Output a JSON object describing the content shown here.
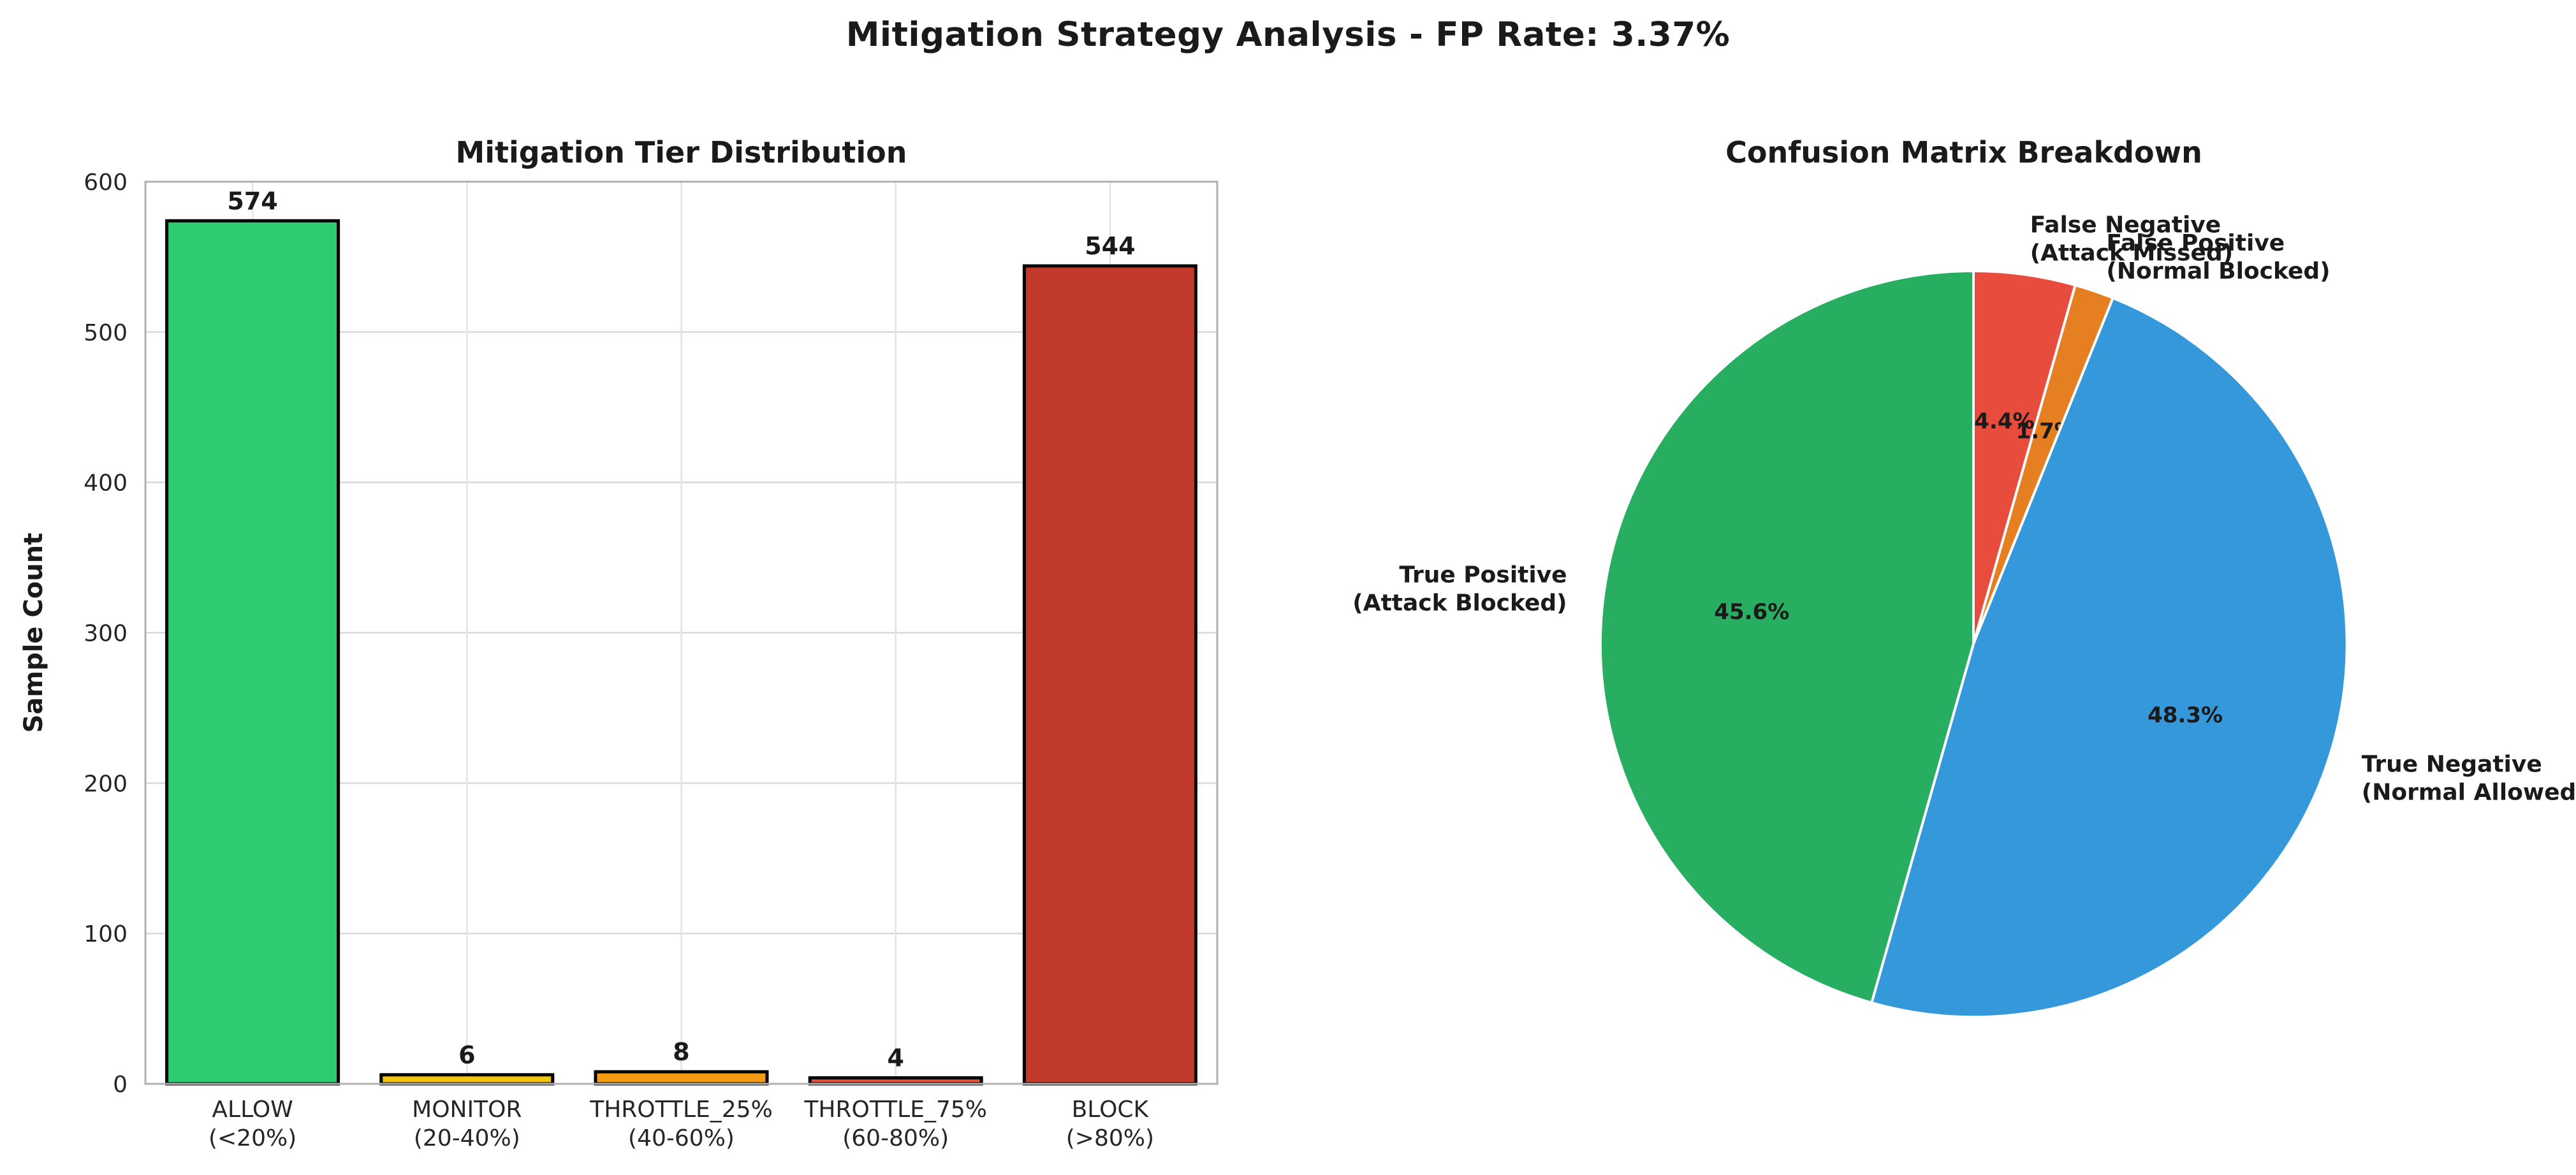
{
  "figure": {
    "suptitle": "Mitigation Strategy Analysis - FP Rate: 3.37%",
    "background": "#ffffff"
  },
  "chart_data": [
    {
      "type": "bar",
      "title": "Mitigation Tier Distribution",
      "xlabel": "",
      "ylabel": "Sample Count",
      "ylim": [
        0,
        600
      ],
      "yticks": [
        0,
        100,
        200,
        300,
        400,
        500,
        600
      ],
      "grid": true,
      "legend_position": "none",
      "categories": [
        "ALLOW\n(<20%)",
        "MONITOR\n(20-40%)",
        "THROTTLE_25%\n(40-60%)",
        "THROTTLE_75%\n(60-80%)",
        "BLOCK\n(>80%)"
      ],
      "values": [
        574,
        6,
        8,
        4,
        544
      ],
      "bar_colors": [
        "#2ecc71",
        "#f1c40f",
        "#f39c12",
        "#e74c3c",
        "#c0392b"
      ],
      "bar_edge_color": "#000000",
      "grid_color": "#d9d9d9",
      "axes_border_color": "#b0b0b0",
      "text_color": "#1a1a1a"
    },
    {
      "type": "pie",
      "title": "Confusion Matrix Breakdown",
      "start_angle": 90,
      "direction": "clockwise",
      "legend_position": "none",
      "slices": [
        {
          "label": "False Negative\n(Attack Missed)",
          "pct": 4.4,
          "pct_label": "4.4%",
          "color": "#e74c3c"
        },
        {
          "label": "False Positive\n(Normal Blocked)",
          "pct": 1.7,
          "pct_label": "1.7%",
          "color": "#e67e22"
        },
        {
          "label": "True Negative\n(Normal Allowed)",
          "pct": 48.3,
          "pct_label": "48.3%",
          "color": "#3498db"
        },
        {
          "label": "True Positive\n(Attack Blocked)",
          "pct": 45.6,
          "pct_label": "45.6%",
          "color": "#27ae60"
        }
      ]
    }
  ]
}
